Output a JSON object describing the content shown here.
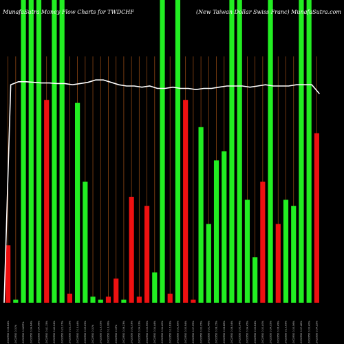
{
  "chart_data": {
    "type": "bar",
    "title_left": "MunafaSutra  Money Flow  Charts for TWDCHF",
    "title_right": "(New  Taiwan  Dollar  Swiss Franc) MunafaSutra.com",
    "background": "#000000",
    "colors": {
      "up": "#22ee22",
      "down": "#ee1111",
      "line": "#ffffff",
      "grid": "#8b4513"
    },
    "ylim": [
      0,
      100
    ],
    "categories": [
      "0.0002950 0.06.64%",
      "0.0002950 0.01%",
      "0.0002950 0.0497%",
      "0.0002950 0.04.64%",
      "0.0002950 0.04.08%",
      "0.0002950 0.41.15%",
      "0.0002950 0.42.24%",
      "0.0002950 0.22.07%",
      "0.0002950 0.22.15%",
      "0.0002950 0.15.44%",
      "0.0002950 0.09.25%",
      "0.0002950 0.01%",
      "0.0002950 0.19.05%",
      "0.0002950 0.19.08%",
      "0.0002950 0.09%",
      "0.0002950 0.06.23%",
      "0.0002950 0.02.03%",
      "0.0002950 0.04.33%",
      "0.0002950 0.03.95%",
      "0.0002950 0.04.44%",
      "0.0002950 0.04.42%",
      "0.0002950 0.15.63%",
      "0.0002950 0.01.65%",
      "0.0002950 0.03.94%",
      "0.0002950 0.07.59%",
      "0.0002950 0.02.25%",
      "0.0002950 0.01.46%",
      "0.0002950 0.08.15%",
      "0.0002950 0.08.88%",
      "0.0002950 0.08.34%",
      "0.0002950 0.05.34%",
      "0.0002950 0.04.45%",
      "0.0002950 0.03.64%",
      "0.0002950 0.00.40%",
      "0.0002950 0.04.35%",
      "0.0002950 0.06.49%",
      "0.0002950 0.10.95%",
      "0.0002950 0.05.56%",
      "0.0002950 0.07.48%",
      "0.0002950 0.03.40%",
      "0.0002950 0.04.25%"
    ],
    "values": [
      19,
      1,
      100,
      100,
      100,
      67,
      100,
      100,
      3,
      66,
      40,
      2,
      1,
      2,
      8,
      1,
      35,
      2,
      32,
      10,
      100,
      3,
      100,
      67,
      1,
      58,
      26,
      47,
      50,
      100,
      100,
      34,
      15,
      40,
      100,
      26,
      34,
      32,
      100,
      100,
      56
    ],
    "directions": [
      "down",
      "up",
      "up",
      "up",
      "up",
      "down",
      "up",
      "up",
      "down",
      "up",
      "up",
      "up",
      "up",
      "down",
      "down",
      "up",
      "down",
      "down",
      "down",
      "up",
      "up",
      "down",
      "up",
      "down",
      "down",
      "up",
      "up",
      "up",
      "up",
      "up",
      "up",
      "up",
      "up",
      "down",
      "up",
      "down",
      "up",
      "up",
      "up",
      "up",
      "down"
    ],
    "line": [
      72,
      73,
      73,
      72.8,
      72.6,
      72.6,
      72.4,
      72.4,
      72,
      72.4,
      72.8,
      73.6,
      73.6,
      72.8,
      72,
      71.6,
      71.6,
      71.2,
      71.6,
      70.8,
      70.8,
      71.2,
      70.8,
      70.8,
      70.4,
      70.8,
      70.8,
      71.2,
      71.6,
      71.6,
      71.6,
      71.2,
      71.6,
      72,
      71.6,
      71.6,
      71.6,
      72,
      72,
      72,
      69
    ]
  }
}
